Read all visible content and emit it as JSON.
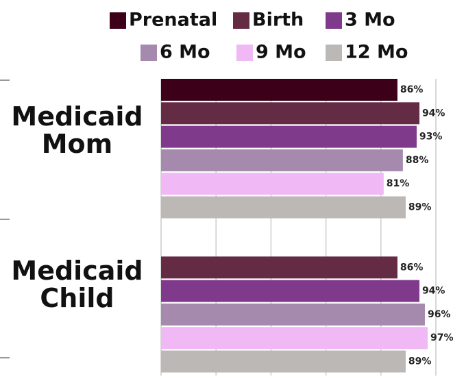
{
  "chart_data": {
    "type": "barh",
    "categories": [
      "Medicaid Mom",
      "Medicaid Child"
    ],
    "series": [
      {
        "name": "Prenatal",
        "color": "#3d0019",
        "values": [
          86,
          null
        ],
        "value_labels": [
          "86%",
          null
        ]
      },
      {
        "name": "Birth",
        "color": "#642b45",
        "values": [
          94,
          86
        ],
        "value_labels": [
          "94%",
          "86%"
        ]
      },
      {
        "name": "3 Mo",
        "color": "#7f3a8c",
        "values": [
          93,
          94
        ],
        "value_labels": [
          "93%",
          "94%"
        ]
      },
      {
        "name": "6 Mo",
        "color": "#a58aae",
        "values": [
          88,
          96
        ],
        "value_labels": [
          "88%",
          "96%"
        ]
      },
      {
        "name": "9 Mo",
        "color": "#f0b8f5",
        "values": [
          81,
          97
        ],
        "value_labels": [
          "81%",
          "97%"
        ]
      },
      {
        "name": "12 Mo",
        "color": "#bcb8b6",
        "values": [
          89,
          89
        ],
        "value_labels": [
          "89%",
          "89%"
        ]
      }
    ],
    "xlim": [
      0,
      100
    ],
    "xticks": [
      0,
      20,
      40,
      60,
      80,
      100
    ],
    "grid": true,
    "legend": "top"
  }
}
